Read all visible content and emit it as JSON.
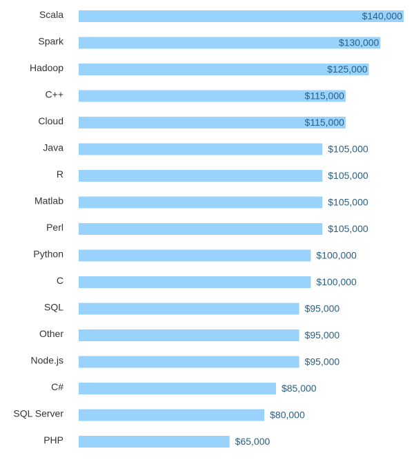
{
  "chart_data": {
    "type": "bar",
    "orientation": "horizontal",
    "categories": [
      "Scala",
      "Spark",
      "Hadoop",
      "C++",
      "Cloud",
      "Java",
      "R",
      "Matlab",
      "Perl",
      "Python",
      "C",
      "SQL",
      "Other",
      "Node.js",
      "C#",
      "SQL Server",
      "PHP"
    ],
    "values": [
      140000,
      130000,
      125000,
      115000,
      115000,
      105000,
      105000,
      105000,
      105000,
      100000,
      100000,
      95000,
      95000,
      95000,
      85000,
      80000,
      65000
    ],
    "value_labels": [
      "$140,000",
      "$130,000",
      "$125,000",
      "$115,000",
      "$115,000",
      "$105,000",
      "$105,000",
      "$105,000",
      "$105,000",
      "$100,000",
      "$100,000",
      "$95,000",
      "$95,000",
      "$95,000",
      "$85,000",
      "$80,000",
      "$65,000"
    ],
    "title": "",
    "xlabel": "",
    "ylabel": "",
    "xlim": [
      0,
      140000
    ],
    "grid": false,
    "legend": "none",
    "bar_color": "#99d3fc",
    "label_color": "#2a5d84"
  }
}
